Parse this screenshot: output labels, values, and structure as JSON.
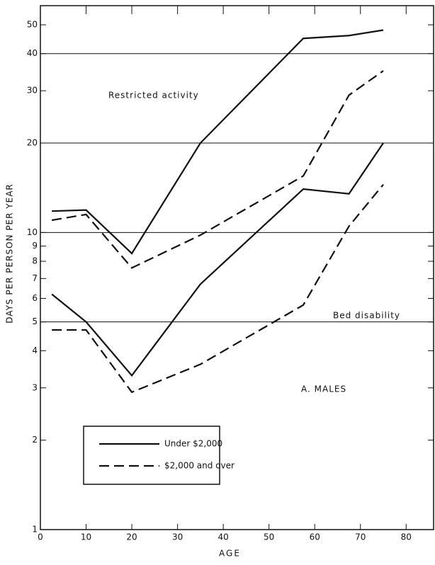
{
  "chart_data": {
    "type": "line",
    "xlabel": "AGE",
    "ylabel": "DAYS PER PERSON PER YEAR",
    "annotations": [
      "Restricted activity",
      "Bed disability",
      "A. MALES"
    ],
    "x": [
      2.5,
      10,
      20,
      35,
      57.5,
      67.5,
      75
    ],
    "series": [
      {
        "style": "solid",
        "values": [
          11.8,
          11.9,
          8.5,
          20,
          45,
          46,
          48
        ]
      },
      {
        "style": "dashed",
        "values": [
          11,
          11.5,
          7.6,
          9.8,
          15.5,
          29,
          35
        ]
      },
      {
        "style": "solid",
        "values": [
          6.2,
          5,
          3.3,
          6.7,
          14,
          13.5,
          20
        ]
      },
      {
        "style": "dashed",
        "values": [
          4.7,
          4.7,
          2.9,
          3.6,
          5.7,
          10.5,
          14.5
        ]
      }
    ],
    "legend": [
      {
        "name": "Under $2,000",
        "style": "solid"
      },
      {
        "name": "$2,000 and over",
        "style": "dashed"
      }
    ],
    "color": "#111111",
    "log_y": true,
    "xlim": [
      0,
      86
    ],
    "xticks": [
      0,
      10,
      20,
      30,
      40,
      50,
      60,
      70,
      80
    ],
    "ylim": [
      1,
      58
    ],
    "yticks": [
      1,
      2,
      3,
      4,
      5,
      6,
      7,
      8,
      9,
      10,
      20,
      30,
      40,
      50
    ],
    "gridlines": [
      5,
      10,
      20,
      40
    ]
  }
}
